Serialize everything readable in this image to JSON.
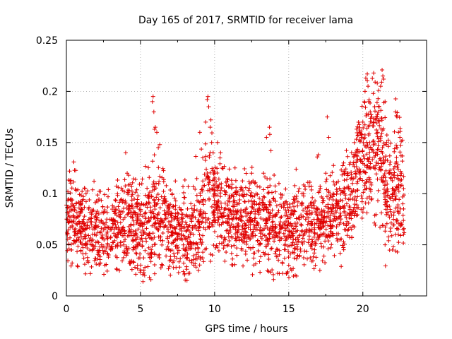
{
  "chart_data": {
    "type": "scatter",
    "title": "Day 165 of 2017, SRMTID for receiver lama",
    "xlabel": "GPS time / hours",
    "ylabel": "SRMTID / TECUs",
    "xlim": [
      0,
      24.3
    ],
    "ylim": [
      0,
      0.25
    ],
    "xticks": [
      0,
      5,
      10,
      15,
      20
    ],
    "xtick_labels": [
      "0",
      "5",
      "10",
      "15",
      "20"
    ],
    "yticks": [
      0,
      0.05,
      0.1,
      0.15,
      0.2,
      0.25
    ],
    "ytick_labels": [
      "0",
      "0.05",
      "0.1",
      "0.15",
      "0.2",
      "0.25"
    ],
    "grid": true,
    "marker": "+",
    "color": "#e00000",
    "series": [
      {
        "name": "SRMTID",
        "x_range_hours": [
          0,
          22.8
        ],
        "envelope": [
          {
            "x": 0,
            "mean": 0.078,
            "spread": 0.02
          },
          {
            "x": 1,
            "mean": 0.07,
            "spread": 0.02
          },
          {
            "x": 2,
            "mean": 0.06,
            "spread": 0.02
          },
          {
            "x": 3,
            "mean": 0.06,
            "spread": 0.02
          },
          {
            "x": 4,
            "mean": 0.07,
            "spread": 0.022
          },
          {
            "x": 5,
            "mean": 0.065,
            "spread": 0.022
          },
          {
            "x": 6,
            "mean": 0.08,
            "spread": 0.025
          },
          {
            "x": 7,
            "mean": 0.07,
            "spread": 0.02
          },
          {
            "x": 8,
            "mean": 0.06,
            "spread": 0.02
          },
          {
            "x": 9,
            "mean": 0.075,
            "spread": 0.025
          },
          {
            "x": 9.7,
            "mean": 0.1,
            "spread": 0.03
          },
          {
            "x": 10.5,
            "mean": 0.08,
            "spread": 0.02
          },
          {
            "x": 12,
            "mean": 0.075,
            "spread": 0.02
          },
          {
            "x": 13.5,
            "mean": 0.07,
            "spread": 0.022
          },
          {
            "x": 15,
            "mean": 0.065,
            "spread": 0.02
          },
          {
            "x": 16,
            "mean": 0.07,
            "spread": 0.02
          },
          {
            "x": 17,
            "mean": 0.075,
            "spread": 0.02
          },
          {
            "x": 18,
            "mean": 0.08,
            "spread": 0.02
          },
          {
            "x": 19,
            "mean": 0.09,
            "spread": 0.025
          },
          {
            "x": 19.8,
            "mean": 0.13,
            "spread": 0.03
          },
          {
            "x": 20.5,
            "mean": 0.15,
            "spread": 0.035
          },
          {
            "x": 21,
            "mean": 0.15,
            "spread": 0.035
          },
          {
            "x": 21.5,
            "mean": 0.12,
            "spread": 0.035
          },
          {
            "x": 22,
            "mean": 0.09,
            "spread": 0.03
          },
          {
            "x": 22.5,
            "mean": 0.11,
            "spread": 0.035
          },
          {
            "x": 22.8,
            "mean": 0.09,
            "spread": 0.03
          }
        ],
        "points": [
          [
            0.1,
            0.102
          ],
          [
            0.3,
            0.113
          ],
          [
            0.5,
            0.131
          ],
          [
            1.0,
            0.09
          ],
          [
            1.5,
            0.085
          ],
          [
            2.2,
            0.04
          ],
          [
            2.6,
            0.03
          ],
          [
            3.0,
            0.045
          ],
          [
            3.5,
            0.06
          ],
          [
            4.0,
            0.14
          ],
          [
            4.1,
            0.12
          ],
          [
            4.2,
            0.118
          ],
          [
            4.4,
            0.107
          ],
          [
            4.8,
            0.03
          ],
          [
            5.0,
            0.025
          ],
          [
            5.3,
            0.028
          ],
          [
            5.6,
            0.018
          ],
          [
            5.7,
            0.016
          ],
          [
            5.8,
            0.19
          ],
          [
            5.85,
            0.195
          ],
          [
            5.9,
            0.18
          ],
          [
            5.95,
            0.163
          ],
          [
            6.0,
            0.165
          ],
          [
            6.1,
            0.16
          ],
          [
            6.2,
            0.145
          ],
          [
            6.3,
            0.148
          ],
          [
            6.5,
            0.09
          ],
          [
            7.0,
            0.07
          ],
          [
            7.5,
            0.06
          ],
          [
            8.0,
            0.045
          ],
          [
            8.3,
            0.035
          ],
          [
            8.6,
            0.03
          ],
          [
            9.0,
            0.16
          ],
          [
            9.2,
            0.135
          ],
          [
            9.4,
            0.17
          ],
          [
            9.5,
            0.192
          ],
          [
            9.55,
            0.195
          ],
          [
            9.6,
            0.185
          ],
          [
            9.7,
            0.165
          ],
          [
            9.8,
            0.15
          ],
          [
            9.9,
            0.14
          ],
          [
            10.0,
            0.12
          ],
          [
            10.2,
            0.15
          ],
          [
            10.4,
            0.14
          ],
          [
            10.5,
            0.125
          ],
          [
            11.0,
            0.075
          ],
          [
            11.5,
            0.08
          ],
          [
            12.0,
            0.06
          ],
          [
            12.2,
            0.035
          ],
          [
            12.5,
            0.12
          ],
          [
            12.8,
            0.1
          ],
          [
            13.0,
            0.05
          ],
          [
            13.3,
            0.12
          ],
          [
            13.5,
            0.155
          ],
          [
            13.7,
            0.165
          ],
          [
            13.72,
            0.158
          ],
          [
            13.8,
            0.142
          ],
          [
            14.0,
            0.06
          ],
          [
            14.3,
            0.035
          ],
          [
            14.6,
            0.022
          ],
          [
            15.0,
            0.03
          ],
          [
            15.2,
            0.025
          ],
          [
            15.5,
            0.124
          ],
          [
            16.0,
            0.1
          ],
          [
            16.5,
            0.08
          ],
          [
            16.8,
            0.03
          ],
          [
            17.0,
            0.138
          ],
          [
            17.5,
            0.12
          ],
          [
            17.6,
            0.175
          ],
          [
            17.7,
            0.155
          ],
          [
            18.0,
            0.1
          ],
          [
            18.3,
            0.09
          ],
          [
            18.7,
            0.13
          ],
          [
            19.0,
            0.12
          ],
          [
            19.3,
            0.11
          ],
          [
            19.5,
            0.14
          ],
          [
            19.8,
            0.16
          ],
          [
            19.9,
            0.155
          ],
          [
            20.0,
            0.17
          ],
          [
            20.1,
            0.19
          ],
          [
            20.15,
            0.2
          ],
          [
            20.2,
            0.213
          ],
          [
            20.3,
            0.217
          ],
          [
            20.35,
            0.205
          ],
          [
            20.4,
            0.19
          ],
          [
            20.5,
            0.18
          ],
          [
            20.6,
            0.17
          ],
          [
            20.7,
            0.198
          ],
          [
            20.8,
            0.185
          ],
          [
            20.9,
            0.175
          ],
          [
            21.0,
            0.16
          ],
          [
            21.1,
            0.185
          ],
          [
            21.2,
            0.205
          ],
          [
            21.3,
            0.221
          ],
          [
            21.35,
            0.215
          ],
          [
            21.4,
            0.212
          ],
          [
            21.5,
            0.19
          ],
          [
            21.6,
            0.15
          ],
          [
            21.8,
            0.12
          ],
          [
            22.0,
            0.1
          ],
          [
            22.2,
            0.18
          ],
          [
            22.3,
            0.175
          ],
          [
            22.4,
            0.16
          ],
          [
            22.5,
            0.155
          ],
          [
            22.6,
            0.12
          ],
          [
            22.7,
            0.09
          ],
          [
            22.75,
            0.085
          ],
          [
            21.5,
            0.05
          ],
          [
            22.0,
            0.045
          ],
          [
            22.2,
            0.06
          ]
        ]
      }
    ]
  }
}
